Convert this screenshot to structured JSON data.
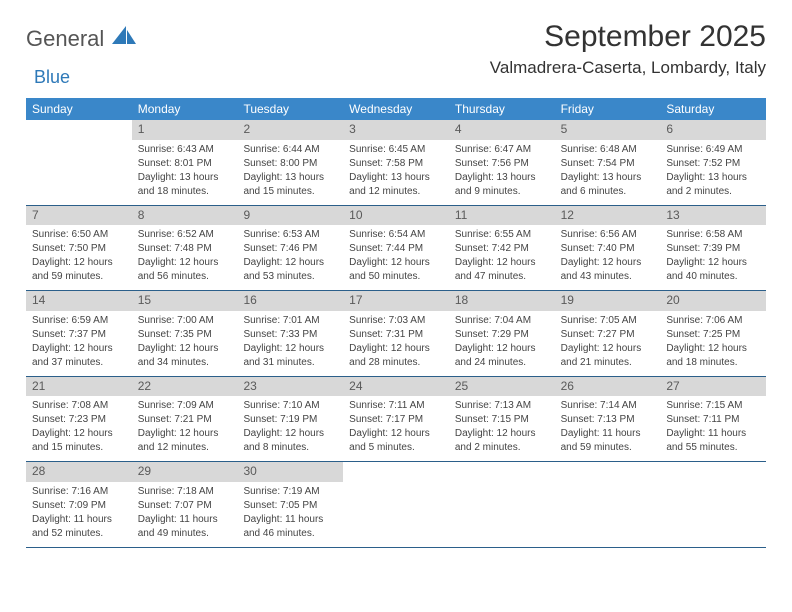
{
  "logo": {
    "word1": "General",
    "word2": "Blue"
  },
  "title": "September 2025",
  "location": "Valmadrera-Caserta, Lombardy, Italy",
  "header_bg": "#3a87c9",
  "header_fg": "#ffffff",
  "daynum_bg": "#d8d8d8",
  "daynum_fg": "#5a5a5a",
  "row_border": "#2b5f8a",
  "day_headers": [
    "Sunday",
    "Monday",
    "Tuesday",
    "Wednesday",
    "Thursday",
    "Friday",
    "Saturday"
  ],
  "weeks": [
    [
      null,
      {
        "n": "1",
        "sr": "Sunrise: 6:43 AM",
        "ss": "Sunset: 8:01 PM",
        "dl1": "Daylight: 13 hours",
        "dl2": "and 18 minutes."
      },
      {
        "n": "2",
        "sr": "Sunrise: 6:44 AM",
        "ss": "Sunset: 8:00 PM",
        "dl1": "Daylight: 13 hours",
        "dl2": "and 15 minutes."
      },
      {
        "n": "3",
        "sr": "Sunrise: 6:45 AM",
        "ss": "Sunset: 7:58 PM",
        "dl1": "Daylight: 13 hours",
        "dl2": "and 12 minutes."
      },
      {
        "n": "4",
        "sr": "Sunrise: 6:47 AM",
        "ss": "Sunset: 7:56 PM",
        "dl1": "Daylight: 13 hours",
        "dl2": "and 9 minutes."
      },
      {
        "n": "5",
        "sr": "Sunrise: 6:48 AM",
        "ss": "Sunset: 7:54 PM",
        "dl1": "Daylight: 13 hours",
        "dl2": "and 6 minutes."
      },
      {
        "n": "6",
        "sr": "Sunrise: 6:49 AM",
        "ss": "Sunset: 7:52 PM",
        "dl1": "Daylight: 13 hours",
        "dl2": "and 2 minutes."
      }
    ],
    [
      {
        "n": "7",
        "sr": "Sunrise: 6:50 AM",
        "ss": "Sunset: 7:50 PM",
        "dl1": "Daylight: 12 hours",
        "dl2": "and 59 minutes."
      },
      {
        "n": "8",
        "sr": "Sunrise: 6:52 AM",
        "ss": "Sunset: 7:48 PM",
        "dl1": "Daylight: 12 hours",
        "dl2": "and 56 minutes."
      },
      {
        "n": "9",
        "sr": "Sunrise: 6:53 AM",
        "ss": "Sunset: 7:46 PM",
        "dl1": "Daylight: 12 hours",
        "dl2": "and 53 minutes."
      },
      {
        "n": "10",
        "sr": "Sunrise: 6:54 AM",
        "ss": "Sunset: 7:44 PM",
        "dl1": "Daylight: 12 hours",
        "dl2": "and 50 minutes."
      },
      {
        "n": "11",
        "sr": "Sunrise: 6:55 AM",
        "ss": "Sunset: 7:42 PM",
        "dl1": "Daylight: 12 hours",
        "dl2": "and 47 minutes."
      },
      {
        "n": "12",
        "sr": "Sunrise: 6:56 AM",
        "ss": "Sunset: 7:40 PM",
        "dl1": "Daylight: 12 hours",
        "dl2": "and 43 minutes."
      },
      {
        "n": "13",
        "sr": "Sunrise: 6:58 AM",
        "ss": "Sunset: 7:39 PM",
        "dl1": "Daylight: 12 hours",
        "dl2": "and 40 minutes."
      }
    ],
    [
      {
        "n": "14",
        "sr": "Sunrise: 6:59 AM",
        "ss": "Sunset: 7:37 PM",
        "dl1": "Daylight: 12 hours",
        "dl2": "and 37 minutes."
      },
      {
        "n": "15",
        "sr": "Sunrise: 7:00 AM",
        "ss": "Sunset: 7:35 PM",
        "dl1": "Daylight: 12 hours",
        "dl2": "and 34 minutes."
      },
      {
        "n": "16",
        "sr": "Sunrise: 7:01 AM",
        "ss": "Sunset: 7:33 PM",
        "dl1": "Daylight: 12 hours",
        "dl2": "and 31 minutes."
      },
      {
        "n": "17",
        "sr": "Sunrise: 7:03 AM",
        "ss": "Sunset: 7:31 PM",
        "dl1": "Daylight: 12 hours",
        "dl2": "and 28 minutes."
      },
      {
        "n": "18",
        "sr": "Sunrise: 7:04 AM",
        "ss": "Sunset: 7:29 PM",
        "dl1": "Daylight: 12 hours",
        "dl2": "and 24 minutes."
      },
      {
        "n": "19",
        "sr": "Sunrise: 7:05 AM",
        "ss": "Sunset: 7:27 PM",
        "dl1": "Daylight: 12 hours",
        "dl2": "and 21 minutes."
      },
      {
        "n": "20",
        "sr": "Sunrise: 7:06 AM",
        "ss": "Sunset: 7:25 PM",
        "dl1": "Daylight: 12 hours",
        "dl2": "and 18 minutes."
      }
    ],
    [
      {
        "n": "21",
        "sr": "Sunrise: 7:08 AM",
        "ss": "Sunset: 7:23 PM",
        "dl1": "Daylight: 12 hours",
        "dl2": "and 15 minutes."
      },
      {
        "n": "22",
        "sr": "Sunrise: 7:09 AM",
        "ss": "Sunset: 7:21 PM",
        "dl1": "Daylight: 12 hours",
        "dl2": "and 12 minutes."
      },
      {
        "n": "23",
        "sr": "Sunrise: 7:10 AM",
        "ss": "Sunset: 7:19 PM",
        "dl1": "Daylight: 12 hours",
        "dl2": "and 8 minutes."
      },
      {
        "n": "24",
        "sr": "Sunrise: 7:11 AM",
        "ss": "Sunset: 7:17 PM",
        "dl1": "Daylight: 12 hours",
        "dl2": "and 5 minutes."
      },
      {
        "n": "25",
        "sr": "Sunrise: 7:13 AM",
        "ss": "Sunset: 7:15 PM",
        "dl1": "Daylight: 12 hours",
        "dl2": "and 2 minutes."
      },
      {
        "n": "26",
        "sr": "Sunrise: 7:14 AM",
        "ss": "Sunset: 7:13 PM",
        "dl1": "Daylight: 11 hours",
        "dl2": "and 59 minutes."
      },
      {
        "n": "27",
        "sr": "Sunrise: 7:15 AM",
        "ss": "Sunset: 7:11 PM",
        "dl1": "Daylight: 11 hours",
        "dl2": "and 55 minutes."
      }
    ],
    [
      {
        "n": "28",
        "sr": "Sunrise: 7:16 AM",
        "ss": "Sunset: 7:09 PM",
        "dl1": "Daylight: 11 hours",
        "dl2": "and 52 minutes."
      },
      {
        "n": "29",
        "sr": "Sunrise: 7:18 AM",
        "ss": "Sunset: 7:07 PM",
        "dl1": "Daylight: 11 hours",
        "dl2": "and 49 minutes."
      },
      {
        "n": "30",
        "sr": "Sunrise: 7:19 AM",
        "ss": "Sunset: 7:05 PM",
        "dl1": "Daylight: 11 hours",
        "dl2": "and 46 minutes."
      },
      null,
      null,
      null,
      null
    ]
  ]
}
